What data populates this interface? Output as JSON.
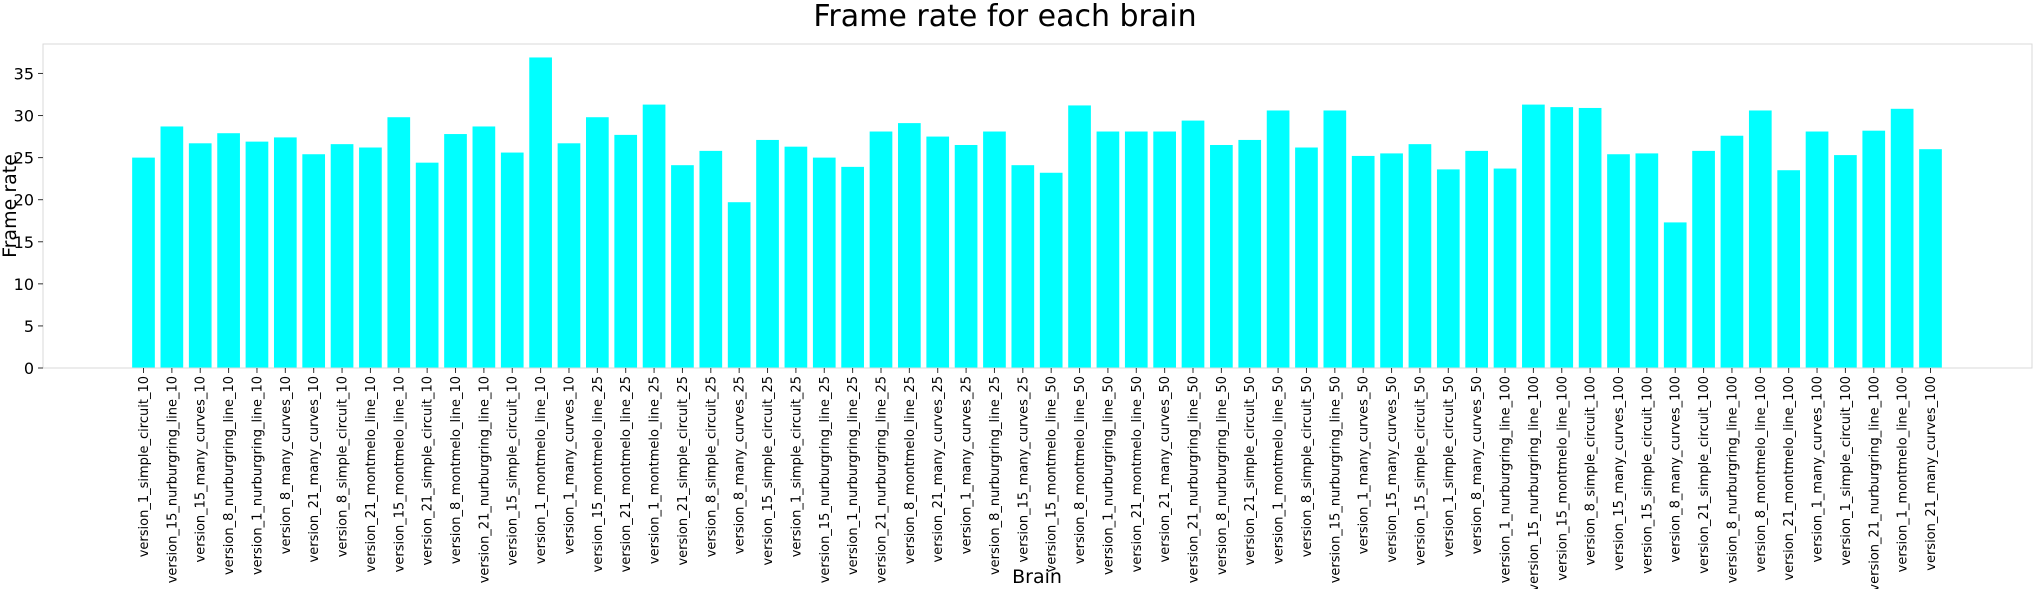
{
  "chart_data": {
    "type": "bar",
    "title": "Frame rate for each brain",
    "xlabel": "Brain",
    "ylabel": "Frame rate",
    "ylim": [
      0,
      38.5
    ],
    "yticks": [
      0,
      5,
      10,
      15,
      20,
      25,
      30,
      35
    ],
    "grid": false,
    "legend": "none",
    "bar_color": "#00ffff",
    "categories": [
      "version_1_simple_circuit_10",
      "version_15_nurburgring_line_10",
      "version_15_many_curves_10",
      "version_8_nurburgring_line_10",
      "version_1_nurburgring_line_10",
      "version_8_many_curves_10",
      "version_21_many_curves_10",
      "version_8_simple_circuit_10",
      "version_21_montmelo_line_10",
      "version_15_montmelo_line_10",
      "version_21_simple_circuit_10",
      "version_8_montmelo_line_10",
      "version_21_nurburgring_line_10",
      "version_15_simple_circuit_10",
      "version_1_montmelo_line_10",
      "version_1_many_curves_10",
      "version_15_montmelo_line_25",
      "version_21_montmelo_line_25",
      "version_1_montmelo_line_25",
      "version_21_simple_circuit_25",
      "version_8_simple_circuit_25",
      "version_8_many_curves_25",
      "version_15_simple_circuit_25",
      "version_1_simple_circuit_25",
      "version_15_nurburgring_line_25",
      "version_1_nurburgring_line_25",
      "version_21_nurburgring_line_25",
      "version_8_montmelo_line_25",
      "version_21_many_curves_25",
      "version_1_many_curves_25",
      "version_8_nurburgring_line_25",
      "version_15_many_curves_25",
      "version_15_montmelo_line_50",
      "version_8_montmelo_line_50",
      "version_1_nurburgring_line_50",
      "version_21_montmelo_line_50",
      "version_21_many_curves_50",
      "version_21_nurburgring_line_50",
      "version_8_nurburgring_line_50",
      "version_21_simple_circuit_50",
      "version_1_montmelo_line_50",
      "version_8_simple_circuit_50",
      "version_15_nurburgring_line_50",
      "version_1_many_curves_50",
      "version_15_many_curves_50",
      "version_15_simple_circuit_50",
      "version_1_simple_circuit_50",
      "version_8_many_curves_50",
      "version_1_nurburgring_line_100",
      "version_15_nurburgring_line_100",
      "version_15_montmelo_line_100",
      "version_8_simple_circuit_100",
      "version_15_many_curves_100",
      "version_15_simple_circuit_100",
      "version_8_many_curves_100",
      "version_21_simple_circuit_100",
      "version_8_nurburgring_line_100",
      "version_8_montmelo_line_100",
      "version_21_montmelo_line_100",
      "version_1_many_curves_100",
      "version_1_simple_circuit_100",
      "version_21_nurburgring_line_100",
      "version_1_montmelo_line_100",
      "version_21_many_curves_100"
    ],
    "values": [
      25.0,
      28.7,
      26.7,
      27.9,
      26.9,
      27.4,
      25.4,
      26.6,
      26.2,
      29.8,
      24.4,
      27.8,
      28.7,
      25.6,
      36.9,
      26.7,
      29.8,
      27.7,
      31.3,
      24.1,
      25.8,
      19.7,
      27.1,
      26.3,
      25.0,
      23.9,
      28.1,
      29.1,
      27.5,
      26.5,
      28.1,
      24.1,
      23.2,
      31.2,
      28.1,
      28.1,
      28.1,
      29.4,
      26.5,
      27.1,
      30.6,
      26.2,
      30.6,
      25.2,
      25.5,
      26.6,
      23.6,
      25.8,
      23.7,
      31.3,
      31.0,
      30.9,
      25.4,
      25.5,
      17.3,
      25.8,
      27.6,
      30.6,
      23.5,
      28.1,
      25.3,
      28.2,
      30.8,
      26.0
    ]
  }
}
